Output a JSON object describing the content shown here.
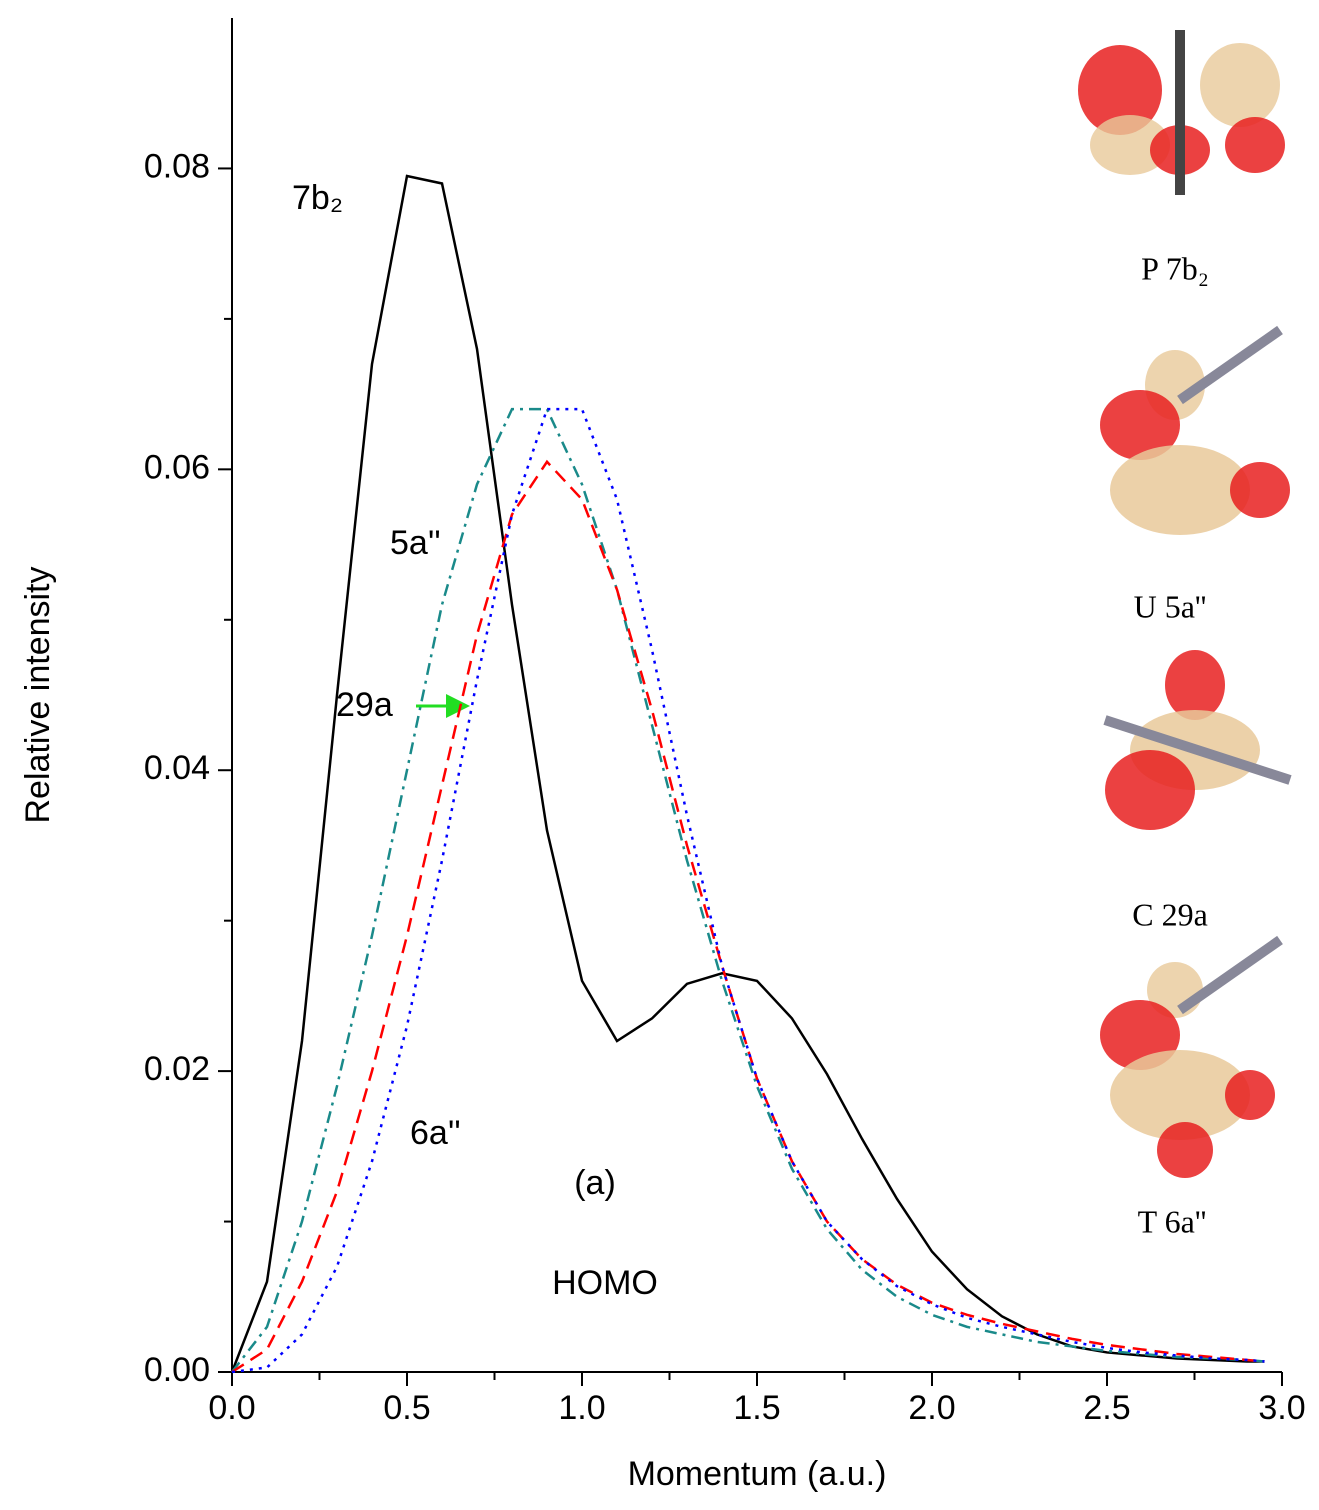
{
  "chart_data": {
    "type": "line",
    "x_label": "Momentum (a.u.)",
    "y_label": "Relative intensity",
    "annotations": [
      "(a)",
      "HOMO"
    ],
    "orbital_labels": [
      "P 7b₂",
      "U 5a''",
      "C 29a",
      "T 6a''"
    ],
    "x": [
      0,
      0.1,
      0.2,
      0.3,
      0.4,
      0.5,
      0.6,
      0.7,
      0.8,
      0.9,
      1.0,
      1.1,
      1.2,
      1.3,
      1.4,
      1.5,
      1.6,
      1.7,
      1.8,
      1.9,
      2.0,
      2.1,
      2.2,
      2.3,
      2.4,
      2.5,
      2.6,
      2.7,
      2.8,
      2.9,
      2.95
    ],
    "series": [
      {
        "name": "7b₂",
        "color": "#000000",
        "dash": "solid",
        "values": [
          0,
          0.006,
          0.022,
          0.045,
          0.067,
          0.0795,
          0.079,
          0.068,
          0.051,
          0.036,
          0.026,
          0.022,
          0.0235,
          0.0258,
          0.0265,
          0.026,
          0.0235,
          0.0198,
          0.0155,
          0.0115,
          0.008,
          0.0055,
          0.0037,
          0.0025,
          0.0017,
          0.0013,
          0.0011,
          0.0009,
          0.0008,
          0.0007,
          0.0007
        ]
      },
      {
        "name": "5a''",
        "color": "#1a8a8a",
        "dash": "dashdot",
        "values": [
          0,
          0.003,
          0.01,
          0.019,
          0.029,
          0.04,
          0.051,
          0.059,
          0.064,
          0.064,
          0.059,
          0.052,
          0.043,
          0.034,
          0.026,
          0.019,
          0.0135,
          0.0095,
          0.0068,
          0.005,
          0.0038,
          0.003,
          0.0025,
          0.002,
          0.0017,
          0.0014,
          0.0012,
          0.001,
          0.0009,
          0.0008,
          0.0007
        ]
      },
      {
        "name": "29a",
        "color": "#ff0000",
        "dash": "dashed",
        "values": [
          0,
          0.0015,
          0.006,
          0.012,
          0.02,
          0.029,
          0.039,
          0.049,
          0.057,
          0.0605,
          0.058,
          0.052,
          0.044,
          0.035,
          0.027,
          0.0195,
          0.014,
          0.01,
          0.0075,
          0.0058,
          0.0046,
          0.0038,
          0.0032,
          0.0027,
          0.0022,
          0.0018,
          0.0015,
          0.0012,
          0.001,
          0.0008,
          0.0007
        ]
      },
      {
        "name": "6a''",
        "color": "#0000ff",
        "dash": "dotted",
        "values": [
          0,
          0.0003,
          0.0025,
          0.007,
          0.014,
          0.023,
          0.034,
          0.046,
          0.057,
          0.064,
          0.064,
          0.058,
          0.048,
          0.037,
          0.027,
          0.0195,
          0.014,
          0.01,
          0.0075,
          0.0057,
          0.0045,
          0.0036,
          0.003,
          0.0025,
          0.002,
          0.0016,
          0.0013,
          0.0011,
          0.0009,
          0.0008,
          0.0007
        ]
      }
    ],
    "xlim": [
      0,
      3.0
    ],
    "ylim": [
      0,
      0.09
    ],
    "xticks": [
      {
        "value": 0,
        "label": "0.0"
      },
      {
        "value": 0.5,
        "label": "0.5"
      },
      {
        "value": 1.0,
        "label": "1.0"
      },
      {
        "value": 1.5,
        "label": "1.5"
      },
      {
        "value": 2.0,
        "label": "2.0"
      },
      {
        "value": 2.5,
        "label": "2.5"
      },
      {
        "value": 3.0,
        "label": "3.0"
      }
    ],
    "xminorticks": [
      0.25,
      0.75,
      1.25,
      1.75,
      2.25,
      2.75
    ],
    "yticks": [
      {
        "value": 0,
        "label": "0.00"
      },
      {
        "value": 0.02,
        "label": "0.02"
      },
      {
        "value": 0.04,
        "label": "0.04"
      },
      {
        "value": 0.06,
        "label": "0.06"
      },
      {
        "value": 0.08,
        "label": "0.08"
      }
    ],
    "yminorticks": [
      0.01,
      0.03,
      0.05,
      0.07
    ],
    "grid": false
  }
}
